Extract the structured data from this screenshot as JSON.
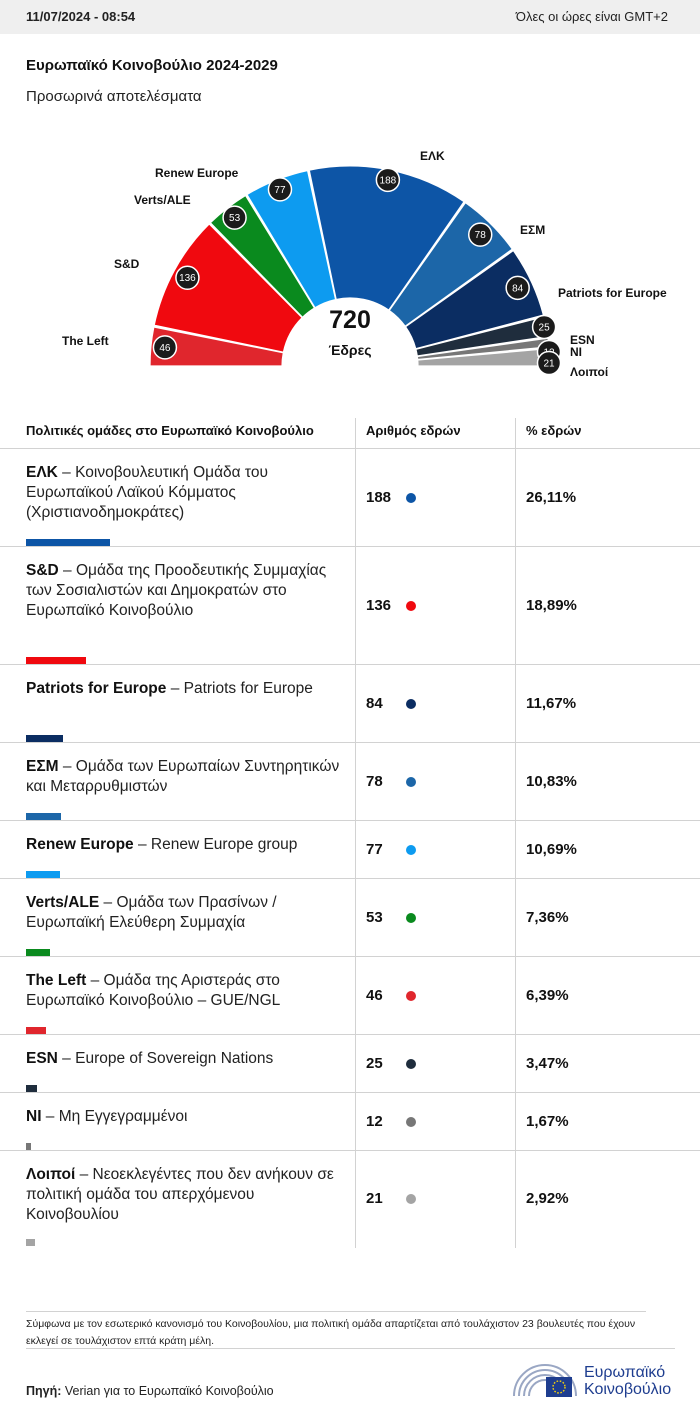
{
  "header": {
    "datetime": "11/07/2024 - 08:54",
    "timezone_note": "Όλες οι ώρες είναι GMT+2"
  },
  "title": "Ευρωπαϊκό Κοινοβούλιο 2024-2029",
  "subtitle": "Προσωρινά αποτελέσματα",
  "chart_data": {
    "type": "pie",
    "style": "hemicycle",
    "total": 720,
    "total_label": "Έδρες",
    "slices": [
      {
        "label": "The Left",
        "value": 46,
        "color": "#e0262d"
      },
      {
        "label": "S&D",
        "value": 136,
        "color": "#f0090f"
      },
      {
        "label": "Verts/ALE",
        "value": 53,
        "color": "#0a8a1e"
      },
      {
        "label": "Renew Europe",
        "value": 77,
        "color": "#0d9bf0"
      },
      {
        "label": "ΕΛΚ",
        "value": 188,
        "color": "#0d55a6"
      },
      {
        "label": "ΕΣΜ",
        "value": 78,
        "color": "#1c66a8"
      },
      {
        "label": "Patriots for Europe",
        "value": 84,
        "color": "#0b2d62"
      },
      {
        "label": "ESN",
        "value": 25,
        "color": "#1f2d3d"
      },
      {
        "label": "NI",
        "value": 12,
        "color": "#777777"
      },
      {
        "label": "Λοιποί",
        "value": 21,
        "color": "#a4a4a4"
      }
    ]
  },
  "table": {
    "headers": {
      "group": "Πολιτικές ομάδες στο Ευρωπαϊκό Κοινοβούλιο",
      "seats": "Αριθμός εδρών",
      "percent": "% εδρών"
    },
    "rows": [
      {
        "abbr": "ΕΛΚ",
        "full": " – Κοινοβουλευτική Ομάδα του Ευρωπαϊκού Λαϊκού Κόμματος (Χριστιανοδημοκράτες)",
        "seats": "188",
        "percent": "26,11%",
        "share": 0.2611,
        "color": "#0d55a6"
      },
      {
        "abbr": "S&D",
        "full": " – Ομάδα της Προοδευτικής Συμμαχίας των Σοσιαλιστών και Δημοκρατών στο Ευρωπαϊκό Κοινοβούλιο",
        "seats": "136",
        "percent": "18,89%",
        "share": 0.1889,
        "color": "#f0090f"
      },
      {
        "abbr": "Patriots for Europe",
        "full": " – Patriots for Europe",
        "seats": "84",
        "percent": "11,67%",
        "share": 0.1167,
        "color": "#0b2d62"
      },
      {
        "abbr": "ΕΣΜ",
        "full": " – Ομάδα των Ευρωπαίων Συντηρητικών και Μεταρρυθμιστών",
        "seats": "78",
        "percent": "10,83%",
        "share": 0.1083,
        "color": "#1c66a8"
      },
      {
        "abbr": "Renew Europe",
        "full": " – Renew Europe group",
        "seats": "77",
        "percent": "10,69%",
        "share": 0.1069,
        "color": "#0d9bf0"
      },
      {
        "abbr": "Verts/ALE",
        "full": " – Ομάδα των Πρασίνων / Ευρωπαϊκή Ελεύθερη Συμμαχία",
        "seats": "53",
        "percent": "7,36%",
        "share": 0.0736,
        "color": "#0a8a1e"
      },
      {
        "abbr": "The Left",
        "full": " – Ομάδα της Αριστεράς στο Ευρωπαϊκό Κοινοβούλιο – GUE/NGL",
        "seats": "46",
        "percent": "6,39%",
        "share": 0.0639,
        "color": "#e0262d"
      },
      {
        "abbr": "ESN",
        "full": " – Europe of Sovereign Nations",
        "seats": "25",
        "percent": "3,47%",
        "share": 0.0347,
        "color": "#1f2d3d"
      },
      {
        "abbr": "NI",
        "full": " – Μη Εγγεγραμμένοι",
        "seats": "12",
        "percent": "1,67%",
        "share": 0.0167,
        "color": "#777777"
      },
      {
        "abbr": "Λοιποί",
        "full": " – Νεοεκλεγέντες που δεν ανήκουν σε πολιτική ομάδα του απερχόμενου Κοινοβουλίου",
        "seats": "21",
        "percent": "2,92%",
        "share": 0.0292,
        "color": "#a4a4a4"
      }
    ]
  },
  "footnote": "Σύμφωνα με τον εσωτερικό κανονισμό του Κοινοβουλίου, μια πολιτική ομάδα απαρτίζεται από τουλάχιστον 23 βουλευτές που έχουν εκλεγεί σε τουλάχιστον επτά κράτη μέλη.",
  "source": {
    "label": "Πηγή:",
    "text": " Verian για το Ευρωπαϊκό Κοινοβούλιο"
  },
  "logo": {
    "line1": "Ευρωπαϊκό",
    "line2": "Κοινοβούλιο",
    "icon": "european-parliament-logo-icon"
  }
}
